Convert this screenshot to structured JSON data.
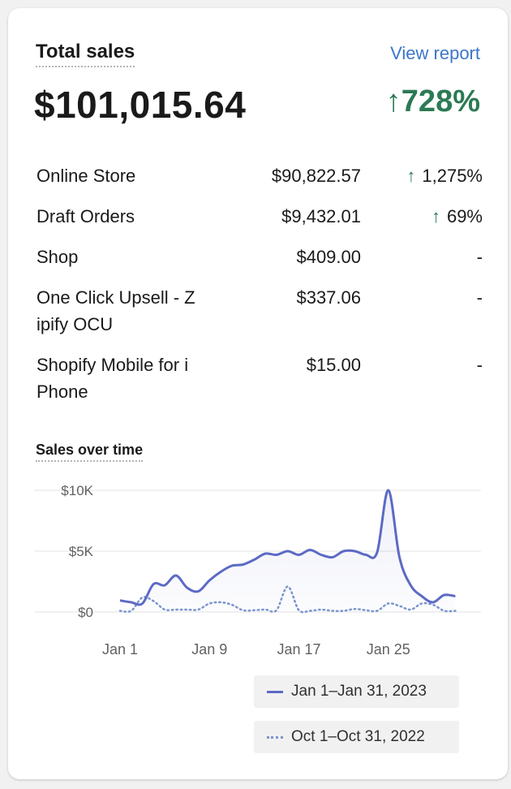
{
  "header": {
    "title": "Total sales",
    "view_report": "View report",
    "total": "$101,015.64",
    "change": "728%",
    "change_arrow": "↑"
  },
  "channels": [
    {
      "name": "Online Store",
      "amount": "$90,822.57",
      "change": "1,275%",
      "trend": "up"
    },
    {
      "name": "Draft Orders",
      "amount": "$9,432.01",
      "change": "69%",
      "trend": "up"
    },
    {
      "name": "Shop",
      "amount": "$409.00",
      "change": "-",
      "trend": "none"
    },
    {
      "name": "One Click Upsell - Z ipify OCU",
      "amount": "$337.06",
      "change": "-",
      "trend": "none"
    },
    {
      "name": "Shopify Mobile for i Phone",
      "amount": "$15.00",
      "change": "-",
      "trend": "none"
    }
  ],
  "chart_section": {
    "title": "Sales over time"
  },
  "chart_data": {
    "type": "area",
    "y_ticks": [
      "$10K",
      "$5K",
      "$0"
    ],
    "x_ticks": [
      "Jan 1",
      "Jan 9",
      "Jan 17",
      "Jan 25"
    ],
    "ylim": [
      0,
      10000
    ],
    "grid": true,
    "series": [
      {
        "name": "Jan 1–Jan 31, 2023",
        "style": "solid",
        "color": "#5c6ac4",
        "x": [
          1,
          2,
          3,
          4,
          5,
          6,
          7,
          8,
          9,
          10,
          11,
          12,
          13,
          14,
          15,
          16,
          17,
          18,
          19,
          20,
          21,
          22,
          23,
          24,
          25,
          26,
          27,
          28,
          29,
          30,
          31
        ],
        "values": [
          950,
          800,
          700,
          2300,
          2200,
          3000,
          2000,
          1700,
          2600,
          3300,
          3800,
          3900,
          4300,
          4800,
          4700,
          5000,
          4700,
          5100,
          4700,
          4500,
          5000,
          5000,
          4700,
          4900,
          10000,
          4500,
          2200,
          1300,
          800,
          1400,
          1300
        ]
      },
      {
        "name": "Oct 1–Oct 31, 2022",
        "style": "dotted",
        "color": "#7a96cf",
        "x": [
          1,
          2,
          3,
          4,
          5,
          6,
          7,
          8,
          9,
          10,
          11,
          12,
          13,
          14,
          15,
          16,
          17,
          18,
          19,
          20,
          21,
          22,
          23,
          24,
          25,
          26,
          27,
          28,
          29,
          30,
          31
        ],
        "values": [
          100,
          100,
          1200,
          900,
          200,
          200,
          200,
          200,
          700,
          800,
          600,
          150,
          150,
          200,
          150,
          2100,
          150,
          100,
          200,
          100,
          100,
          250,
          150,
          100,
          700,
          500,
          200,
          700,
          600,
          100,
          100
        ]
      }
    ]
  },
  "legend": [
    {
      "label": "Jan 1–Jan 31, 2023",
      "style": "solid",
      "color": "#5c6ac4"
    },
    {
      "label": "Oct 1–Oct 31, 2022",
      "style": "dotted",
      "color": "#7a96cf"
    }
  ]
}
